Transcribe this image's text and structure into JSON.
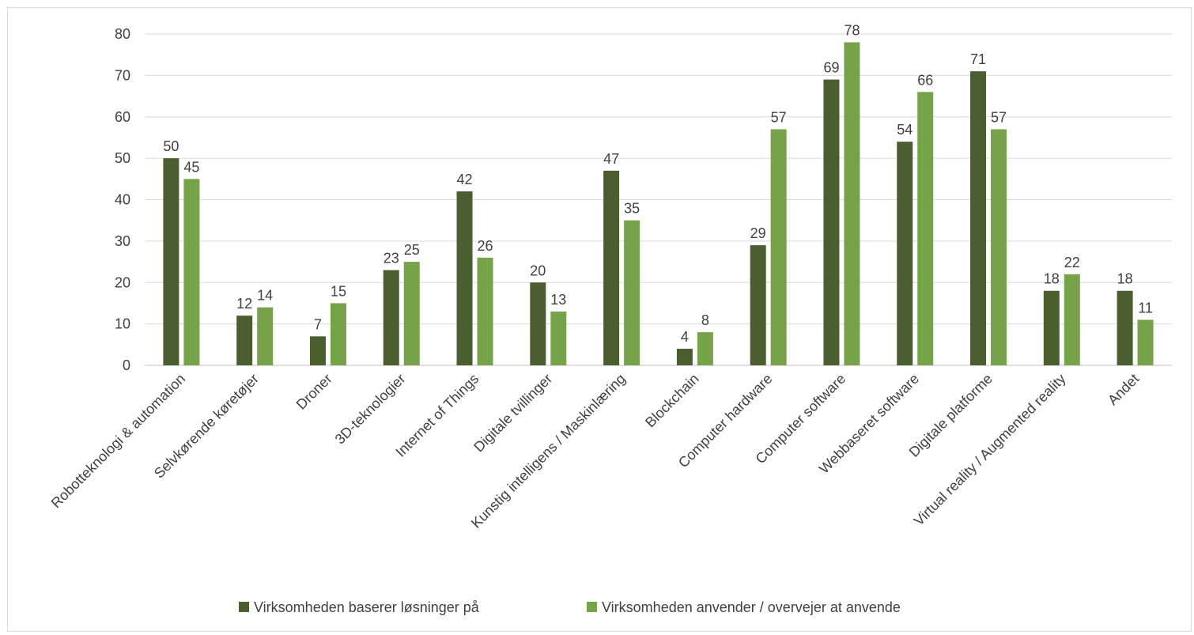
{
  "chart_data": {
    "type": "bar",
    "title": "",
    "xlabel": "",
    "ylabel": "",
    "ylim": [
      0,
      80
    ],
    "yticks": [
      0,
      10,
      20,
      30,
      40,
      50,
      60,
      70,
      80
    ],
    "grid": true,
    "legend_position": "bottom",
    "categories": [
      "Robotteknologi & automation",
      "Selvkørende køretøjer",
      "Droner",
      "3D-teknologier",
      "Internet of Things",
      "Digitale tvillinger",
      "Kunstig intelligens / Maskinlæring",
      "Blockchain",
      "Computer hardware",
      "Computer software",
      "Webbaseret software",
      "Digitale platforme",
      "Virtual reality / Augmented reality",
      "Andet"
    ],
    "series": [
      {
        "name": "Virksomheden baserer løsninger på",
        "color": "#4a5e2f",
        "values": [
          50,
          12,
          7,
          23,
          42,
          20,
          47,
          4,
          29,
          69,
          54,
          71,
          18,
          18
        ]
      },
      {
        "name": "Virksomheden anvender / overvejer at anvende",
        "color": "#76a34a",
        "values": [
          45,
          14,
          15,
          25,
          26,
          13,
          35,
          8,
          57,
          78,
          66,
          57,
          22,
          11
        ]
      }
    ],
    "gridline_color": "#d9d9d9",
    "axis_color": "#bfbfbf",
    "text_color": "#404040"
  }
}
